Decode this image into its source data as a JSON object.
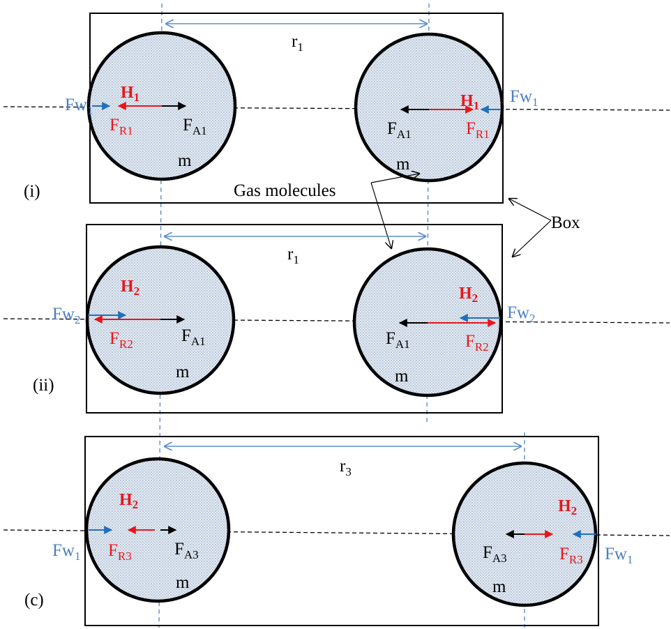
{
  "colors": {
    "wall_force": "#1f6fbf",
    "repulsive_force": "#e8161b",
    "attractive_force": "#000000",
    "guide_line": "#5b8dc9",
    "molecule_fill": "#dde6f0"
  },
  "annotations": {
    "gas_molecules": "Gas molecules",
    "box": "Box"
  },
  "panels": [
    {
      "label": "(i)",
      "distance": {
        "main": "r",
        "sub": "1"
      },
      "left": {
        "heat": {
          "main": "H",
          "sub": "1"
        },
        "wall_force": {
          "main": "Fw",
          "sub": "1"
        },
        "repulsive": {
          "main": "F",
          "sub": "R1"
        },
        "attractive": {
          "main": "F",
          "sub": "A1"
        },
        "mass": "m"
      },
      "right": {
        "heat": {
          "main": "H",
          "sub": "1"
        },
        "wall_force": {
          "main": "Fw",
          "sub": "1"
        },
        "repulsive": {
          "main": "F",
          "sub": "R1"
        },
        "attractive": {
          "main": "F",
          "sub": "A1"
        },
        "mass": "m"
      }
    },
    {
      "label": "(ii)",
      "distance": {
        "main": "r",
        "sub": "1"
      },
      "left": {
        "heat": {
          "main": "H",
          "sub": "2"
        },
        "wall_force": {
          "main": "Fw",
          "sub": "2"
        },
        "repulsive": {
          "main": "F",
          "sub": "R2"
        },
        "attractive": {
          "main": "F",
          "sub": "A1"
        },
        "mass": "m"
      },
      "right": {
        "heat": {
          "main": "H",
          "sub": "2"
        },
        "wall_force": {
          "main": "Fw",
          "sub": "2"
        },
        "repulsive": {
          "main": "F",
          "sub": "R2"
        },
        "attractive": {
          "main": "F",
          "sub": "A1"
        },
        "mass": "m"
      }
    },
    {
      "label": "(c)",
      "distance": {
        "main": "r",
        "sub": "3"
      },
      "left": {
        "heat": {
          "main": "H",
          "sub": "2"
        },
        "wall_force": {
          "main": "Fw",
          "sub": "1"
        },
        "repulsive": {
          "main": "F",
          "sub": "R3"
        },
        "attractive": {
          "main": "F",
          "sub": "A3"
        },
        "mass": "m"
      },
      "right": {
        "heat": {
          "main": "H",
          "sub": "2"
        },
        "wall_force": {
          "main": "Fw",
          "sub": "1"
        },
        "repulsive": {
          "main": "F",
          "sub": "R3"
        },
        "attractive": {
          "main": "F",
          "sub": "A3"
        },
        "mass": "m"
      }
    }
  ]
}
